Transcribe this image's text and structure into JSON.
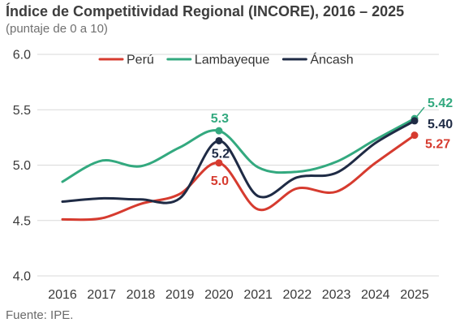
{
  "chart_data": {
    "type": "line",
    "title": "Índice de Competitividad Regional (INCORE), 2016 – 2025",
    "subtitle": "(puntaje de 0 a 10)",
    "x": [
      2016,
      2017,
      2018,
      2019,
      2020,
      2021,
      2022,
      2023,
      2024,
      2025
    ],
    "ylim": [
      4.0,
      6.0
    ],
    "y_tick_labels": [
      "4.0",
      "4.5",
      "5.0",
      "5.5",
      "6.0"
    ],
    "grid": true,
    "smooth": true,
    "legend_position": "top",
    "series": [
      {
        "name": "Perú",
        "color": "#d63b2f",
        "values": [
          4.51,
          4.52,
          4.65,
          4.74,
          5.02,
          4.6,
          4.79,
          4.76,
          5.02,
          5.27
        ],
        "data_labels": [
          {
            "x": 2020,
            "text": "5.0"
          },
          {
            "x": 2025,
            "text": "5.27"
          }
        ]
      },
      {
        "name": "Lambayeque",
        "color": "#33a97f",
        "values": [
          4.85,
          5.04,
          4.99,
          5.16,
          5.31,
          4.98,
          4.94,
          5.03,
          5.23,
          5.42
        ],
        "data_labels": [
          {
            "x": 2020,
            "text": "5.3"
          },
          {
            "x": 2025,
            "text": "5.42"
          }
        ]
      },
      {
        "name": "Áncash",
        "color": "#1f2b45",
        "values": [
          4.67,
          4.7,
          4.69,
          4.7,
          5.22,
          4.72,
          4.89,
          4.93,
          5.2,
          5.4
        ],
        "data_labels": [
          {
            "x": 2020,
            "text": "5.2"
          },
          {
            "x": 2025,
            "text": "5.40"
          }
        ]
      }
    ]
  },
  "source": "Fuente: IPE."
}
